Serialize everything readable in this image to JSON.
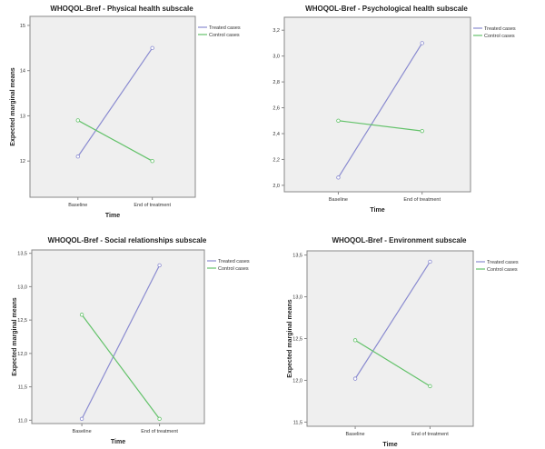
{
  "colors": {
    "treated": "#8a8bd0",
    "control": "#63c26a",
    "plot_bg": "#efefef",
    "axis": "#888888"
  },
  "chart_data": [
    {
      "type": "line",
      "title": "WHOQOL-Bref - Physical health subscale",
      "xlabel": "Time",
      "ylabel": "Expected marginal means",
      "categories": [
        "Baseline",
        "End of treatment"
      ],
      "ylim": [
        11.2,
        15.2
      ],
      "yticks": [
        12,
        13,
        14,
        15
      ],
      "ytick_labels": [
        "12",
        "13",
        "14",
        "15"
      ],
      "series": [
        {
          "name": "Treated cases",
          "values": [
            12.1,
            14.5
          ]
        },
        {
          "name": "Control cases",
          "values": [
            12.9,
            12.0
          ]
        }
      ],
      "legend": "top-right"
    },
    {
      "type": "line",
      "title": "WHOQOL-Bref - Psychological health subscale",
      "xlabel": "Time",
      "ylabel": "Expected marginal means",
      "categories": [
        "Baseline",
        "End of treatment"
      ],
      "ylim": [
        11.95,
        13.3
      ],
      "yticks": [
        12.0,
        12.2,
        12.4,
        12.6,
        12.8,
        13.0,
        13.2
      ],
      "ytick_labels": [
        "12,0",
        "12,2",
        "12,4",
        "12,6",
        "12,8",
        "13,0",
        "13,2"
      ],
      "series": [
        {
          "name": "Treated cases",
          "values": [
            12.06,
            13.1
          ]
        },
        {
          "name": "Control cases",
          "values": [
            12.5,
            12.42
          ]
        }
      ],
      "legend": "top-right"
    },
    {
      "type": "line",
      "title": "WHOQOL-Bref - Social relationships  subscale",
      "xlabel": "Time",
      "ylabel": "Expected marginal means",
      "categories": [
        "Baseline",
        "End of treatment"
      ],
      "ylim": [
        10.95,
        13.55
      ],
      "yticks": [
        11.0,
        11.5,
        12.0,
        12.5,
        13.0,
        13.5
      ],
      "ytick_labels": [
        "11,0",
        "11,5",
        "12,0",
        "12,5",
        "13,0",
        "13,5"
      ],
      "series": [
        {
          "name": "Treated cases",
          "values": [
            11.02,
            13.32
          ]
        },
        {
          "name": "Control cases",
          "values": [
            12.58,
            11.02
          ]
        }
      ],
      "legend": "top-right"
    },
    {
      "type": "line",
      "title": "WHOQOL-Bref - Environment subscale",
      "xlabel": "Time",
      "ylabel": "Expected marginal means",
      "categories": [
        "Baseline",
        "End of treatment"
      ],
      "ylim": [
        11.45,
        13.55
      ],
      "yticks": [
        11.5,
        12.0,
        12.5,
        13.0,
        13.5
      ],
      "ytick_labels": [
        "11,5",
        "12,0",
        "12,5",
        "13,0",
        "13,5"
      ],
      "series": [
        {
          "name": "Treated cases",
          "values": [
            12.02,
            13.42
          ]
        },
        {
          "name": "Control cases",
          "values": [
            12.48,
            11.93
          ]
        }
      ],
      "legend": "top-right"
    }
  ]
}
